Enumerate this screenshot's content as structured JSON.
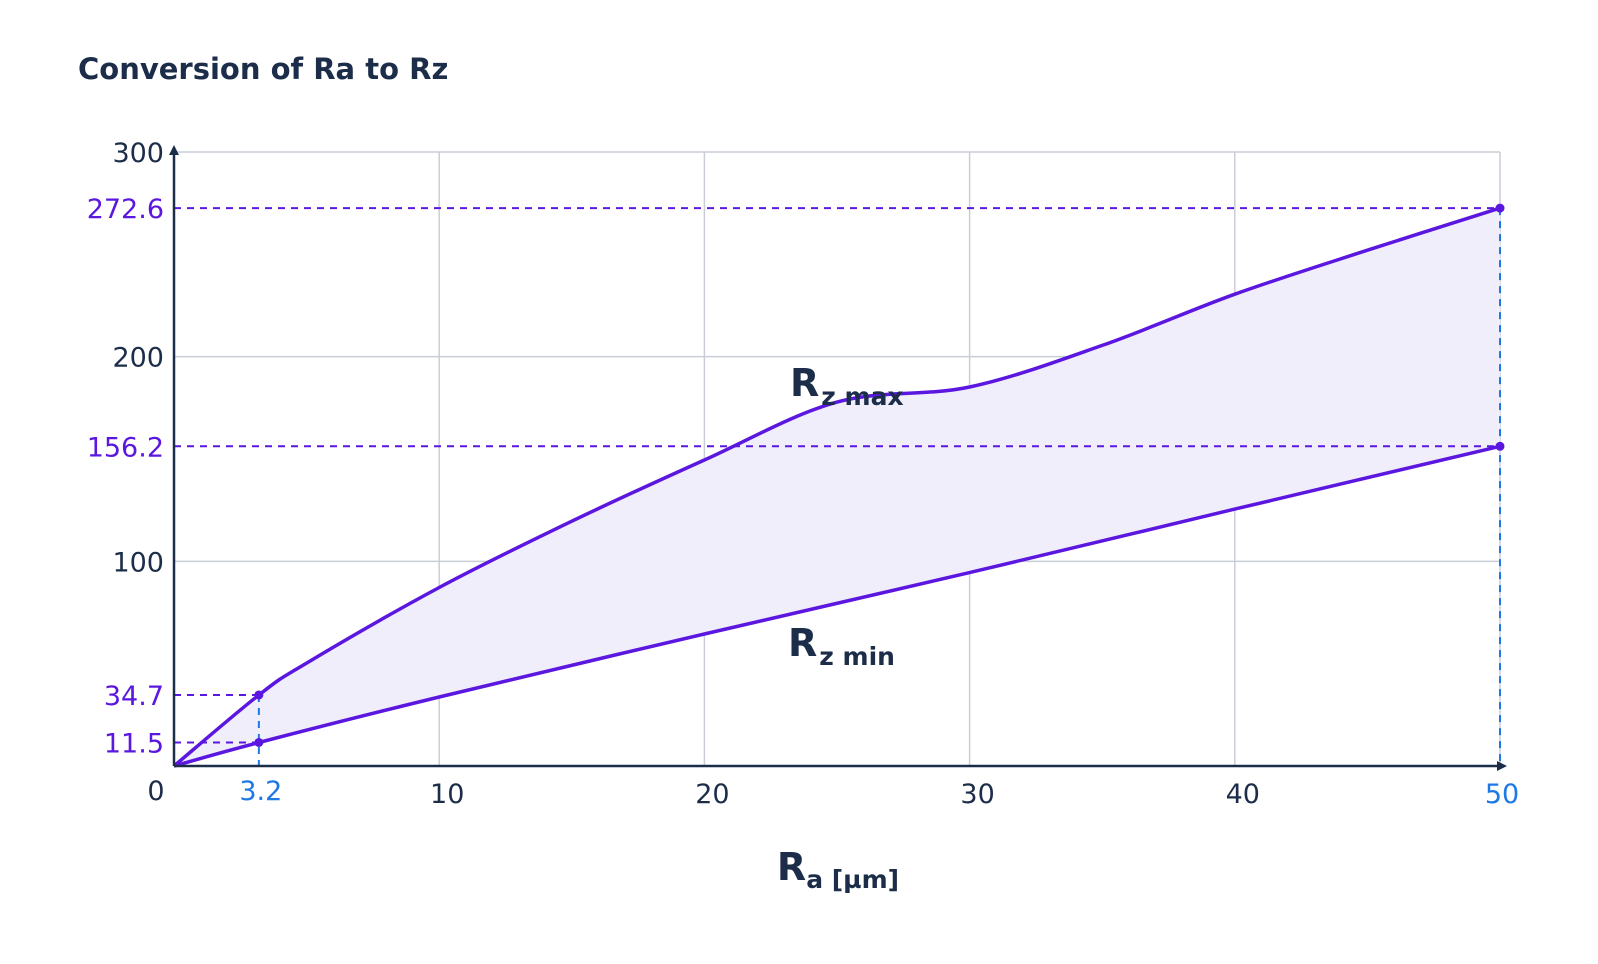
{
  "title": "Conversion of Ra to Rz",
  "colors": {
    "curve": "#5b17e0",
    "fill": "#f1eefb",
    "x_highlight": "#1e78e6",
    "text": "#1c2d4a",
    "grid": "#c9cdd6"
  },
  "chart_data": {
    "type": "area",
    "xlabel": {
      "main": "R",
      "sub": "a [µm]"
    },
    "xlim": [
      0,
      50
    ],
    "ylim": [
      0,
      300
    ],
    "grid": true,
    "x_ticks": [
      "0",
      "10",
      "20",
      "30",
      "40"
    ],
    "x_tick_values": [
      0,
      10,
      20,
      30,
      40
    ],
    "y_ticks": [
      "100",
      "200",
      "300"
    ],
    "y_tick_values": [
      100,
      200,
      300
    ],
    "highlight_x": [
      {
        "value": 3.2,
        "label": "3.2"
      },
      {
        "value": 50,
        "label": "50"
      }
    ],
    "highlight_y": [
      {
        "value": 11.5,
        "label": "11.5"
      },
      {
        "value": 34.7,
        "label": "34.7"
      },
      {
        "value": 156.2,
        "label": "156.2"
      },
      {
        "value": 272.6,
        "label": "272.6"
      }
    ],
    "series": [
      {
        "name": "Rz max",
        "label_main": "R",
        "label_sub": "z max",
        "x": [
          0,
          3.2,
          5,
          10,
          15,
          20,
          25,
          30,
          35,
          40,
          45,
          50
        ],
        "values": [
          0,
          34.7,
          50.3,
          87.2,
          119.6,
          149.5,
          177.8,
          185.2,
          205.5,
          230.5,
          252,
          272.6
        ]
      },
      {
        "name": "Rz min",
        "label_main": "R",
        "label_sub": "z min",
        "x": [
          0,
          3.2,
          10,
          20,
          30,
          40,
          50
        ],
        "values": [
          0,
          11.5,
          33.7,
          64.5,
          94.5,
          125.5,
          156.2
        ]
      }
    ]
  }
}
